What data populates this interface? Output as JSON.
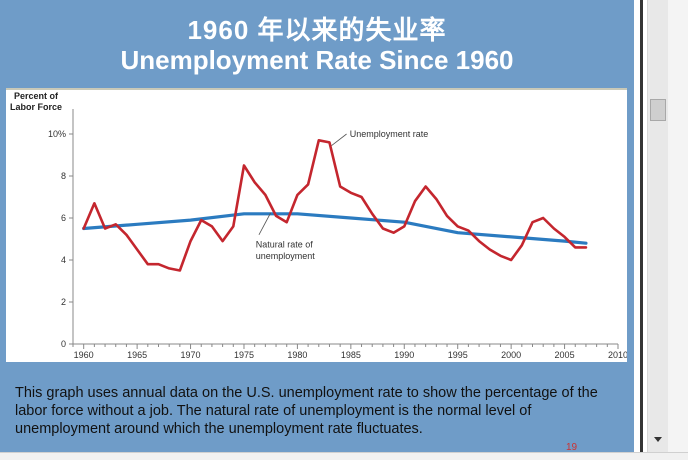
{
  "slide": {
    "title_cn": "1960 年以来的失业率",
    "title_en": "Unemployment Rate Since 1960",
    "caption": "This graph uses annual data on the U.S. unemployment rate to show the percentage of the labor force without a job. The natural rate of unemployment is the normal level of unemployment around which the unemployment rate fluctuates.",
    "slide_number": "19"
  },
  "colors": {
    "slide_background": "#6f9cc8",
    "unemployment_line": "#c4262e",
    "natural_line": "#2b7bc0"
  },
  "chart_data": {
    "type": "line",
    "title": "",
    "ylabel": "Percent of Labor Force",
    "xlabel": "",
    "xlim": [
      1959,
      2010
    ],
    "ylim": [
      0,
      11
    ],
    "x_ticks": [
      1960,
      1965,
      1970,
      1975,
      1980,
      1985,
      1990,
      1995,
      2000,
      2005,
      2010
    ],
    "y_ticks": [
      0,
      2,
      4,
      6,
      8,
      10
    ],
    "y_tick_labels": [
      "0",
      "2",
      "4",
      "6",
      "8",
      "10%"
    ],
    "grid": false,
    "annotations": [
      {
        "text": "Unemployment rate",
        "series": "unemployment"
      },
      {
        "text": "Natural rate of unemployment",
        "series": "natural"
      }
    ],
    "series": [
      {
        "name": "Unemployment rate",
        "color": "#c4262e",
        "x": [
          1960,
          1961,
          1962,
          1963,
          1964,
          1965,
          1966,
          1967,
          1968,
          1969,
          1970,
          1971,
          1972,
          1973,
          1974,
          1975,
          1976,
          1977,
          1978,
          1979,
          1980,
          1981,
          1982,
          1983,
          1984,
          1985,
          1986,
          1987,
          1988,
          1989,
          1990,
          1991,
          1992,
          1993,
          1994,
          1995,
          1996,
          1997,
          1998,
          1999,
          2000,
          2001,
          2002,
          2003,
          2004,
          2005,
          2006,
          2007
        ],
        "values": [
          5.5,
          6.7,
          5.5,
          5.7,
          5.2,
          4.5,
          3.8,
          3.8,
          3.6,
          3.5,
          4.9,
          5.9,
          5.6,
          4.9,
          5.6,
          8.5,
          7.7,
          7.1,
          6.1,
          5.8,
          7.1,
          7.6,
          9.7,
          9.6,
          7.5,
          7.2,
          7.0,
          6.2,
          5.5,
          5.3,
          5.6,
          6.8,
          7.5,
          6.9,
          6.1,
          5.6,
          5.4,
          4.9,
          4.5,
          4.2,
          4.0,
          4.7,
          5.8,
          6.0,
          5.5,
          5.1,
          4.6,
          4.6
        ]
      },
      {
        "name": "Natural rate of unemployment",
        "color": "#2b7bc0",
        "x": [
          1960,
          1965,
          1970,
          1975,
          1980,
          1985,
          1990,
          1995,
          2000,
          2005,
          2007
        ],
        "values": [
          5.5,
          5.7,
          5.9,
          6.2,
          6.2,
          6.0,
          5.8,
          5.3,
          5.1,
          4.9,
          4.8
        ]
      }
    ]
  }
}
